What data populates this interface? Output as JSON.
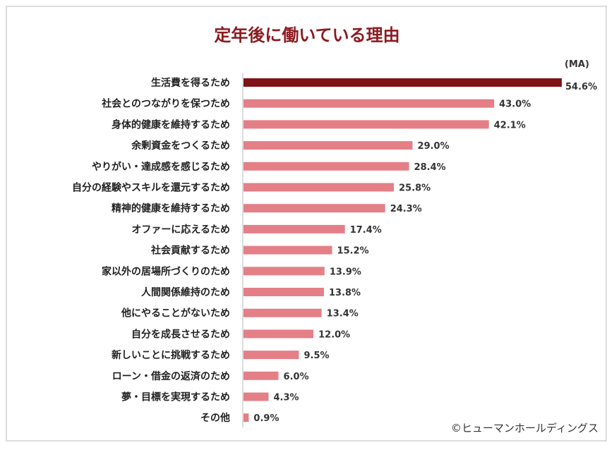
{
  "chart_data": {
    "type": "bar",
    "orientation": "horizontal",
    "title": "定年後に働いている理由",
    "unit_note": "(MA)",
    "categories": [
      "生活費を得るため",
      "社会とのつながりを保つため",
      "身体的健康を維持するため",
      "余剰資金をつくるため",
      "やりがい・達成感を感じるため",
      "自分の経験やスキルを還元するため",
      "精神的健康を維持するため",
      "オファーに応えるため",
      "社会貢献するため",
      "家以外の居場所づくりのため",
      "人間関係維持のため",
      "他にやることがないため",
      "自分を成長させるため",
      "新しいことに挑戦するため",
      "ローン・借金の返済のため",
      "夢・目標を実現するため",
      "その他"
    ],
    "values": [
      54.6,
      43.0,
      42.1,
      29.0,
      28.4,
      25.8,
      24.3,
      17.4,
      15.2,
      13.9,
      13.8,
      13.4,
      12.0,
      9.5,
      6.0,
      4.3,
      0.9
    ],
    "value_labels": [
      "54.6%",
      "43.0%",
      "42.1%",
      "29.0%",
      "28.4%",
      "25.8%",
      "24.3%",
      "17.4%",
      "15.2%",
      "13.9%",
      "13.8%",
      "13.4%",
      "12.0%",
      "9.5%",
      "6.0%",
      "4.3%",
      "0.9%"
    ],
    "xlim": [
      0,
      54.6
    ],
    "grid": false,
    "colors": {
      "highlight": "#7f1317",
      "default": "#e47f87",
      "title": "#8b1a1f"
    }
  },
  "credit": "©ヒューマンホールディングス"
}
